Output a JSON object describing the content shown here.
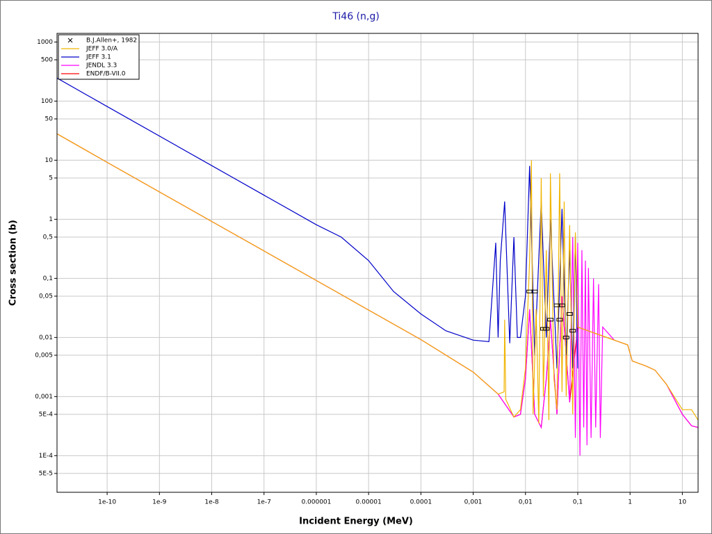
{
  "chart_data": {
    "type": "line",
    "title": "Ti46 (n,g)",
    "x_label": "Incident Energy (MeV)",
    "y_label": "Cross section (b)",
    "xscale": "log",
    "yscale": "log",
    "grid": true,
    "legend": "upper left",
    "xlim": [
      1.1e-11,
      20
    ],
    "ylim": [
      2.4e-05,
      1400
    ],
    "xticks": [
      1e-10,
      1e-09,
      1e-08,
      1e-07,
      1e-06,
      1e-05,
      0.0001,
      {
        "value": 0.001,
        "label": "0,001"
      },
      {
        "value": 0.01,
        "label": "0,01"
      },
      {
        "value": 0.1,
        "label": "0,1"
      },
      1,
      10
    ],
    "yticks": [
      1000,
      500,
      100,
      50,
      10,
      5,
      1,
      {
        "value": 0.5,
        "label": "0,5"
      },
      {
        "value": 0.1,
        "label": "0,1"
      },
      {
        "value": 0.05,
        "label": "0,05"
      },
      {
        "value": 0.01,
        "label": "0,01"
      },
      {
        "value": 0.005,
        "label": "0,005"
      },
      {
        "value": 0.001,
        "label": "0,001"
      },
      {
        "value": 0.0005,
        "label": "5E-4"
      },
      {
        "value": 0.0001,
        "label": "1E-4"
      },
      {
        "value": 5e-05,
        "label": "5E-5"
      }
    ],
    "series": [
      {
        "name": "B.J.Allen+, 1982",
        "color": "#000000",
        "style": "marker",
        "x": [
          0.012,
          0.015,
          0.022,
          0.025,
          0.03,
          0.04,
          0.045,
          0.05,
          0.06,
          0.07,
          0.08
        ],
        "values": [
          0.06,
          0.06,
          0.014,
          0.014,
          0.02,
          0.035,
          0.02,
          0.035,
          0.01,
          0.025,
          0.013
        ]
      },
      {
        "name": "JEFF 3.0/A",
        "color": "#f0b400",
        "style": "line",
        "x": [
          1.1e-11,
          1e-10,
          1e-08,
          1e-06,
          0.0001,
          0.001,
          0.003,
          0.0039,
          0.004,
          0.0042,
          0.006,
          0.008,
          0.01,
          0.012,
          0.013,
          0.014,
          0.016,
          0.018,
          0.02,
          0.022,
          0.025,
          0.028,
          0.03,
          0.035,
          0.04,
          0.045,
          0.05,
          0.055,
          0.06,
          0.07,
          0.08,
          0.09,
          0.1,
          0.2,
          0.5,
          0.9,
          1.1,
          2,
          3,
          5,
          10,
          15,
          20
        ],
        "values": [
          28,
          9.2,
          0.92,
          0.092,
          0.0092,
          0.0026,
          0.0011,
          0.0012,
          0.02,
          0.0009,
          0.00045,
          0.0006,
          0.003,
          0.2,
          10,
          0.0005,
          0.03,
          0.00035,
          5,
          0.001,
          0.3,
          0.0004,
          6,
          0.002,
          0.0006,
          6,
          0.0012,
          2,
          0.001,
          0.8,
          0.0005,
          0.6,
          0.015,
          0.012,
          0.009,
          0.0075,
          0.004,
          0.0033,
          0.0028,
          0.0016,
          0.0006,
          0.0006,
          0.0004
        ]
      },
      {
        "name": "JEFF 3.1",
        "color": "#0000c8",
        "style": "line",
        "x": [
          1.1e-11,
          1e-10,
          1e-08,
          1e-06,
          3e-06,
          1e-05,
          3e-05,
          0.0001,
          0.0003,
          0.001,
          0.002,
          0.0027,
          0.003,
          0.0033,
          0.004,
          0.005,
          0.006,
          0.007,
          0.008,
          0.01,
          0.012,
          0.015,
          0.02,
          0.025,
          0.03,
          0.04,
          0.05,
          0.06,
          0.07,
          0.08,
          0.09,
          0.1
        ],
        "values": [
          245,
          81,
          8.1,
          0.81,
          0.5,
          0.2,
          0.06,
          0.025,
          0.013,
          0.009,
          0.0085,
          0.4,
          0.01,
          0.2,
          2,
          0.008,
          0.5,
          0.01,
          0.01,
          0.05,
          8,
          0.005,
          2,
          0.01,
          1,
          0.003,
          1.5,
          0.005,
          0.3,
          0.003,
          0.5,
          0.003
        ]
      },
      {
        "name": "JENDL 3.3",
        "color": "#ff00ff",
        "style": "line",
        "x": [
          1.1e-11,
          1e-10,
          1e-08,
          1e-06,
          0.0001,
          0.001,
          0.003,
          0.006,
          0.008,
          0.01,
          0.012,
          0.015,
          0.02,
          0.025,
          0.03,
          0.04,
          0.05,
          0.07,
          0.08,
          0.09,
          0.1,
          0.11,
          0.12,
          0.13,
          0.14,
          0.15,
          0.16,
          0.18,
          0.2,
          0.22,
          0.25,
          0.27,
          0.3,
          0.5,
          0.9,
          1.1,
          2,
          3,
          5,
          10,
          15,
          20
        ],
        "values": [
          28,
          9.2,
          0.92,
          0.092,
          0.0092,
          0.0026,
          0.0011,
          0.00045,
          0.0005,
          0.002,
          0.03,
          0.0005,
          0.0003,
          0.002,
          0.02,
          0.0005,
          0.05,
          0.0008,
          0.5,
          0.0002,
          0.4,
          0.0001,
          0.3,
          0.0003,
          0.2,
          0.00015,
          0.15,
          0.0002,
          0.1,
          0.0003,
          0.08,
          0.0002,
          0.015,
          0.009,
          0.0075,
          0.004,
          0.0033,
          0.0028,
          0.0016,
          0.0005,
          0.00032,
          0.0003
        ]
      },
      {
        "name": "ENDF/B-VII.0",
        "color": "#ff0000",
        "style": "line",
        "x": [
          1.1e-11,
          1e-10,
          1e-08,
          1e-06,
          0.0001,
          0.001,
          0.003,
          0.006,
          0.008,
          0.01,
          0.012,
          0.015,
          0.02,
          0.025,
          0.03,
          0.04,
          0.05,
          0.07,
          0.1,
          0.2,
          0.5,
          0.9,
          1.1,
          2,
          3,
          5,
          10,
          15,
          20
        ],
        "values": [
          28,
          9.2,
          0.92,
          0.092,
          0.0092,
          0.0026,
          0.0011,
          0.00045,
          0.0005,
          0.002,
          0.03,
          0.0005,
          0.0003,
          0.002,
          0.02,
          0.0005,
          0.05,
          0.0008,
          0.015,
          0.012,
          0.009,
          0.0075,
          0.004,
          0.0033,
          0.0028,
          0.0016,
          0.0005,
          0.00032,
          0.0003
        ]
      }
    ]
  }
}
